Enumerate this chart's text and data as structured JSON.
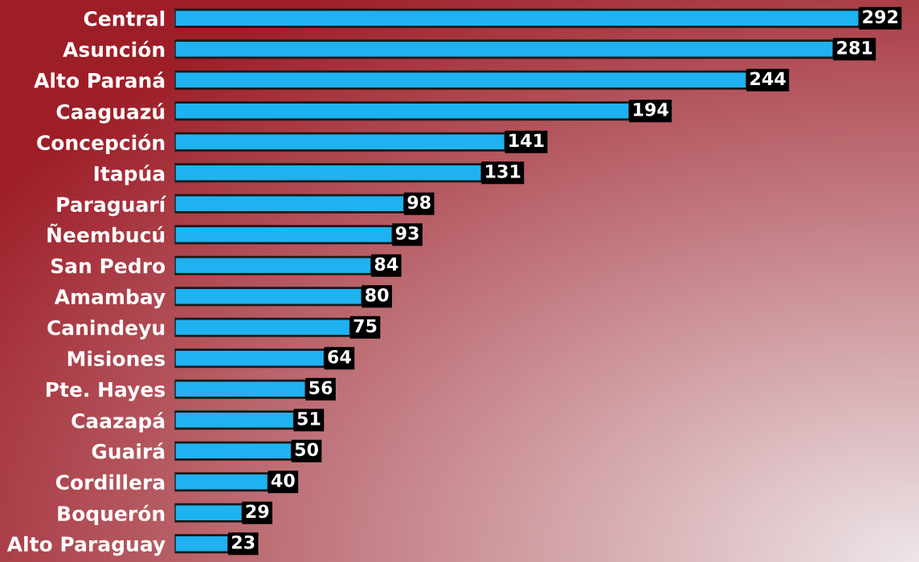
{
  "chart_data": {
    "type": "bar",
    "orientation": "horizontal",
    "categories": [
      "Central",
      "Asunción",
      "Alto Paraná",
      "Caaguazú",
      "Concepción",
      "Itapúa",
      "Paraguarí",
      "Ñeembucú",
      "San Pedro",
      "Amambay",
      "Canindeyu",
      "Misiones",
      "Pte. Hayes",
      "Caazapá",
      "Guairá",
      "Cordillera",
      "Boquerón",
      "Alto Paraguay"
    ],
    "values": [
      292,
      281,
      244,
      194,
      141,
      131,
      98,
      93,
      84,
      80,
      75,
      64,
      56,
      51,
      50,
      40,
      29,
      23
    ],
    "color": "#1fb2f0",
    "data_labels": true,
    "grid": false
  }
}
